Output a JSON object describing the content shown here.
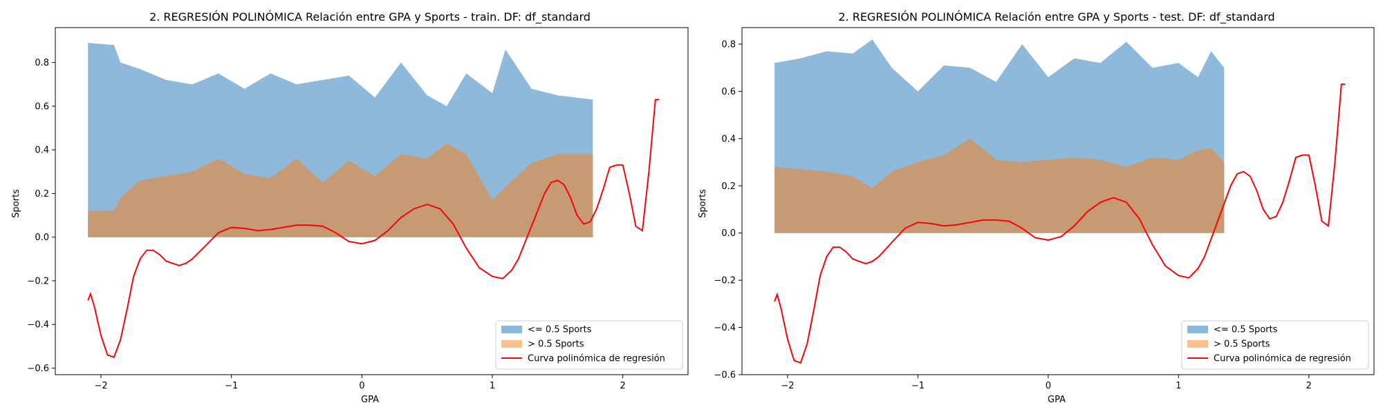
{
  "figure": {
    "panels": [
      {
        "title": "2. REGRESIÓN POLINÓMICA Relación entre GPA y Sports - train. DF: df_standard",
        "xlabel": "GPA",
        "ylabel": "Sports"
      },
      {
        "title": "2. REGRESIÓN POLINÓMICA Relación entre GPA y Sports - test. DF: df_standard",
        "xlabel": "GPA",
        "ylabel": "Sports"
      }
    ],
    "legend": [
      "<= 0.5 Sports",
      "> 0.5 Sports",
      "Curva polinómica de regresión"
    ],
    "colors": {
      "low": "#8fb9da",
      "high": "#c69b74",
      "high_legend": "#ffbf86",
      "curve": "#ff0000",
      "axis": "#000000"
    }
  },
  "chart_data": [
    {
      "type": "area",
      "title": "2. REGRESIÓN POLINÓMICA Relación entre GPA y Sports - train. DF: df_standard",
      "xlabel": "GPA",
      "ylabel": "Sports",
      "xlim": [
        -2.35,
        2.5
      ],
      "ylim": [
        -0.63,
        0.96
      ],
      "xticks": [
        -2,
        -1,
        0,
        1,
        2
      ],
      "yticks": [
        -0.6,
        -0.4,
        -0.2,
        0.0,
        0.2,
        0.4,
        0.6,
        0.8
      ],
      "xtick_labels": [
        "−2",
        "−1",
        "0",
        "1",
        "2"
      ],
      "ytick_labels": [
        "−0.6",
        "−0.4",
        "−0.2",
        "0.0",
        "0.2",
        "0.4",
        "0.6",
        "0.8"
      ],
      "grid": false,
      "legend_position": "lower right",
      "area_x_range": [
        -2.1,
        1.77
      ],
      "series": [
        {
          "name": "<= 0.5 Sports",
          "kind": "area",
          "x": [
            -2.1,
            -1.9,
            -1.85,
            -1.7,
            -1.5,
            -1.3,
            -1.1,
            -0.9,
            -0.7,
            -0.5,
            -0.3,
            -0.1,
            0.1,
            0.3,
            0.5,
            0.65,
            0.8,
            1.0,
            1.1,
            1.3,
            1.5,
            1.77
          ],
          "values": [
            0.89,
            0.88,
            0.8,
            0.77,
            0.72,
            0.7,
            0.75,
            0.68,
            0.75,
            0.7,
            0.72,
            0.74,
            0.64,
            0.8,
            0.65,
            0.6,
            0.75,
            0.66,
            0.86,
            0.68,
            0.65,
            0.63
          ]
        },
        {
          "name": "> 0.5 Sports",
          "kind": "area",
          "x": [
            -2.1,
            -1.9,
            -1.85,
            -1.7,
            -1.5,
            -1.3,
            -1.1,
            -0.9,
            -0.7,
            -0.5,
            -0.3,
            -0.1,
            0.1,
            0.3,
            0.5,
            0.65,
            0.8,
            1.0,
            1.1,
            1.3,
            1.5,
            1.77
          ],
          "values": [
            0.12,
            0.12,
            0.18,
            0.26,
            0.28,
            0.3,
            0.36,
            0.29,
            0.27,
            0.36,
            0.25,
            0.35,
            0.28,
            0.38,
            0.36,
            0.43,
            0.38,
            0.17,
            0.23,
            0.34,
            0.38,
            0.38
          ]
        },
        {
          "name": "Curva polinómica de regresión",
          "kind": "line",
          "x": [
            -2.1,
            -2.08,
            -2.05,
            -2.0,
            -1.95,
            -1.9,
            -1.85,
            -1.8,
            -1.75,
            -1.7,
            -1.65,
            -1.6,
            -1.55,
            -1.5,
            -1.45,
            -1.4,
            -1.35,
            -1.3,
            -1.2,
            -1.1,
            -1.0,
            -0.9,
            -0.8,
            -0.7,
            -0.6,
            -0.5,
            -0.4,
            -0.3,
            -0.2,
            -0.1,
            0.0,
            0.1,
            0.2,
            0.3,
            0.4,
            0.5,
            0.6,
            0.7,
            0.8,
            0.9,
            1.0,
            1.08,
            1.15,
            1.2,
            1.3,
            1.4,
            1.45,
            1.5,
            1.55,
            1.6,
            1.65,
            1.7,
            1.75,
            1.8,
            1.85,
            1.9,
            1.95,
            2.0,
            2.05,
            2.1,
            2.15,
            2.2,
            2.25,
            2.28
          ],
          "values": [
            -0.29,
            -0.26,
            -0.32,
            -0.45,
            -0.54,
            -0.55,
            -0.47,
            -0.33,
            -0.18,
            -0.1,
            -0.06,
            -0.06,
            -0.08,
            -0.11,
            -0.12,
            -0.13,
            -0.12,
            -0.1,
            -0.04,
            0.02,
            0.045,
            0.04,
            0.03,
            0.035,
            0.045,
            0.055,
            0.055,
            0.05,
            0.02,
            -0.02,
            -0.03,
            -0.015,
            0.03,
            0.09,
            0.13,
            0.15,
            0.13,
            0.06,
            -0.05,
            -0.14,
            -0.18,
            -0.19,
            -0.15,
            -0.1,
            0.05,
            0.2,
            0.25,
            0.26,
            0.24,
            0.18,
            0.1,
            0.06,
            0.07,
            0.13,
            0.22,
            0.32,
            0.33,
            0.33,
            0.2,
            0.05,
            0.03,
            0.3,
            0.63,
            0.63
          ]
        }
      ]
    },
    {
      "type": "area",
      "title": "2. REGRESIÓN POLINÓMICA Relación entre GPA y Sports - test. DF: df_standard",
      "xlabel": "GPA",
      "ylabel": "Sports",
      "xlim": [
        -2.35,
        2.5
      ],
      "ylim": [
        -0.6,
        0.87
      ],
      "xticks": [
        -2,
        -1,
        0,
        1,
        2
      ],
      "yticks": [
        -0.6,
        -0.4,
        -0.2,
        0.0,
        0.2,
        0.4,
        0.6,
        0.8
      ],
      "xtick_labels": [
        "−2",
        "−1",
        "0",
        "1",
        "2"
      ],
      "ytick_labels": [
        "−0.6",
        "−0.4",
        "−0.2",
        "0.0",
        "0.2",
        "0.4",
        "0.6",
        "0.8"
      ],
      "grid": false,
      "legend_position": "lower right",
      "area_x_range": [
        -2.1,
        1.35
      ],
      "series": [
        {
          "name": "<= 0.5 Sports",
          "kind": "area",
          "x": [
            -2.1,
            -1.9,
            -1.7,
            -1.5,
            -1.35,
            -1.2,
            -1.0,
            -0.8,
            -0.6,
            -0.4,
            -0.2,
            0.0,
            0.2,
            0.4,
            0.6,
            0.8,
            1.0,
            1.15,
            1.25,
            1.35
          ],
          "values": [
            0.72,
            0.74,
            0.77,
            0.76,
            0.82,
            0.7,
            0.6,
            0.71,
            0.7,
            0.64,
            0.8,
            0.66,
            0.74,
            0.72,
            0.81,
            0.7,
            0.72,
            0.66,
            0.77,
            0.7
          ]
        },
        {
          "name": "> 0.5 Sports",
          "kind": "area",
          "x": [
            -2.1,
            -1.9,
            -1.7,
            -1.5,
            -1.35,
            -1.2,
            -1.0,
            -0.8,
            -0.6,
            -0.4,
            -0.2,
            0.0,
            0.2,
            0.4,
            0.6,
            0.8,
            1.0,
            1.15,
            1.25,
            1.35
          ],
          "values": [
            0.28,
            0.27,
            0.26,
            0.24,
            0.19,
            0.26,
            0.3,
            0.33,
            0.4,
            0.31,
            0.3,
            0.31,
            0.32,
            0.31,
            0.28,
            0.32,
            0.31,
            0.35,
            0.36,
            0.3
          ]
        },
        {
          "name": "Curva polinómica de regresión",
          "kind": "line",
          "x": [
            -2.1,
            -2.08,
            -2.05,
            -2.0,
            -1.95,
            -1.9,
            -1.85,
            -1.8,
            -1.75,
            -1.7,
            -1.65,
            -1.6,
            -1.55,
            -1.5,
            -1.45,
            -1.4,
            -1.35,
            -1.3,
            -1.2,
            -1.1,
            -1.0,
            -0.9,
            -0.8,
            -0.7,
            -0.6,
            -0.5,
            -0.4,
            -0.3,
            -0.2,
            -0.1,
            0.0,
            0.1,
            0.2,
            0.3,
            0.4,
            0.5,
            0.6,
            0.7,
            0.8,
            0.9,
            1.0,
            1.08,
            1.15,
            1.2,
            1.3,
            1.4,
            1.45,
            1.5,
            1.55,
            1.6,
            1.65,
            1.7,
            1.75,
            1.8,
            1.85,
            1.9,
            1.95,
            2.0,
            2.05,
            2.1,
            2.15,
            2.2,
            2.25,
            2.28
          ],
          "values": [
            -0.29,
            -0.26,
            -0.32,
            -0.45,
            -0.54,
            -0.55,
            -0.47,
            -0.33,
            -0.18,
            -0.1,
            -0.06,
            -0.06,
            -0.08,
            -0.11,
            -0.12,
            -0.13,
            -0.12,
            -0.1,
            -0.04,
            0.02,
            0.045,
            0.04,
            0.03,
            0.035,
            0.045,
            0.055,
            0.055,
            0.05,
            0.02,
            -0.02,
            -0.03,
            -0.015,
            0.03,
            0.09,
            0.13,
            0.15,
            0.13,
            0.06,
            -0.05,
            -0.14,
            -0.18,
            -0.19,
            -0.15,
            -0.1,
            0.05,
            0.2,
            0.25,
            0.26,
            0.24,
            0.18,
            0.1,
            0.06,
            0.07,
            0.13,
            0.22,
            0.32,
            0.33,
            0.33,
            0.2,
            0.05,
            0.03,
            0.3,
            0.63,
            0.63
          ]
        }
      ]
    }
  ]
}
